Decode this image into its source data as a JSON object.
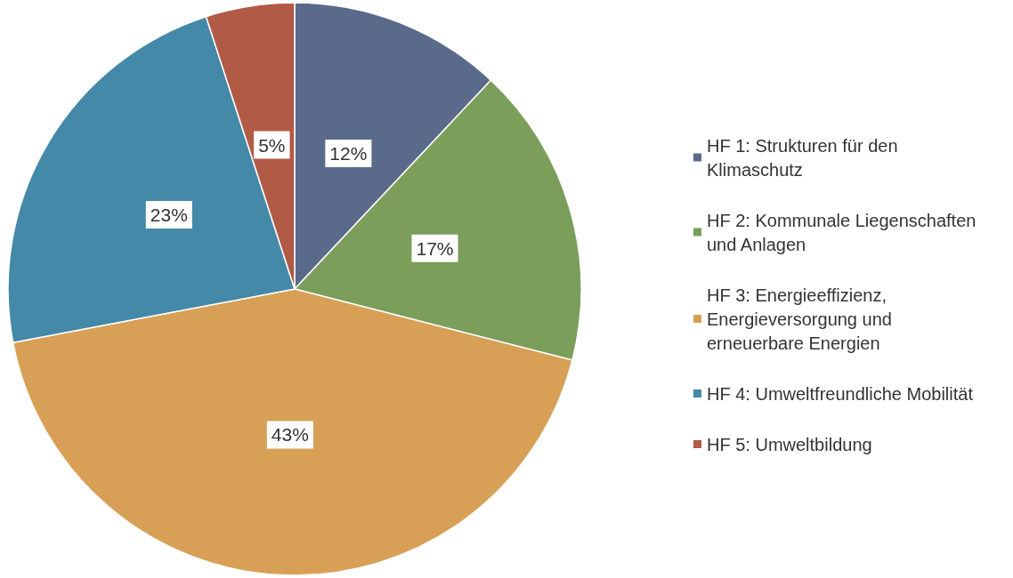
{
  "chart_data": {
    "type": "pie",
    "categories": [
      "HF 1: Strukturen für den Klimaschutz",
      "HF 2: Kommunale Liegenschaften und Anlagen",
      "HF 3: Energieeffizienz, Energieversorgung und erneuerbare Energien",
      "HF 4: Umweltfreundliche Mobilität",
      "HF 5: Umweltbildung"
    ],
    "values": [
      12,
      17,
      43,
      23,
      5
    ],
    "colors": [
      "#5a6a8b",
      "#7b9e5a",
      "#d8a056",
      "#4489a7",
      "#b15a46"
    ],
    "value_labels": [
      "12%",
      "17%",
      "43%",
      "23%",
      "5%"
    ],
    "legend": "right"
  }
}
